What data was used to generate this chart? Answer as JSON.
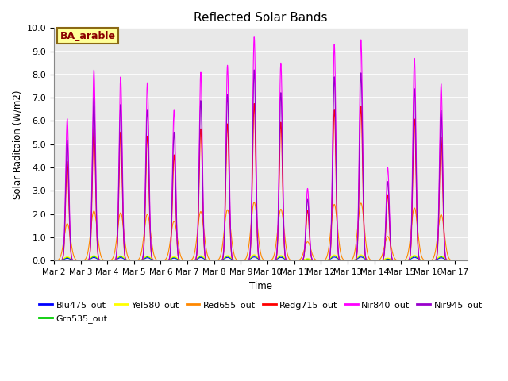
{
  "title": "Reflected Solar Bands",
  "ylabel": "Solar Raditaion (W/m2)",
  "xlabel": "Time",
  "annotation_text": "BA_arable",
  "annotation_color": "#8B0000",
  "annotation_bg": "#FFFF99",
  "annotation_border": "#8B6914",
  "ylim": [
    0,
    10.0
  ],
  "yticks": [
    0.0,
    1.0,
    2.0,
    3.0,
    4.0,
    5.0,
    6.0,
    7.0,
    8.0,
    9.0,
    10.0
  ],
  "series": [
    {
      "label": "Blu475_out",
      "color": "#0000FF",
      "scale": 0.016
    },
    {
      "label": "Grn535_out",
      "color": "#00CC00",
      "scale": 0.022
    },
    {
      "label": "Yel580_out",
      "color": "#FFFF00",
      "scale": 0.026
    },
    {
      "label": "Red655_out",
      "color": "#FF8800",
      "scale": 0.26
    },
    {
      "label": "Redg715_out",
      "color": "#FF0000",
      "scale": 0.7
    },
    {
      "label": "Nir840_out",
      "color": "#FF00FF",
      "scale": 1.0
    },
    {
      "label": "Nir945_out",
      "color": "#9900CC",
      "scale": 0.85
    }
  ],
  "day_peaks_narrow": [
    {
      "day": 0,
      "peak": 6.1
    },
    {
      "day": 1,
      "peak": 8.2
    },
    {
      "day": 2,
      "peak": 7.9
    },
    {
      "day": 3,
      "peak": 7.65
    },
    {
      "day": 4,
      "peak": 6.5
    },
    {
      "day": 5,
      "peak": 8.1
    },
    {
      "day": 6,
      "peak": 8.4
    },
    {
      "day": 7,
      "peak": 9.65
    },
    {
      "day": 8,
      "peak": 8.5
    },
    {
      "day": 9,
      "peak": 3.1
    },
    {
      "day": 10,
      "peak": 9.3
    },
    {
      "day": 11,
      "peak": 9.5
    },
    {
      "day": 12,
      "peak": 4.0
    },
    {
      "day": 13,
      "peak": 8.7
    },
    {
      "day": 14,
      "peak": 7.6
    }
  ],
  "day_peaks_broad": [
    {
      "day": 0,
      "peak": 6.1
    },
    {
      "day": 1,
      "peak": 8.2
    },
    {
      "day": 2,
      "peak": 7.9
    },
    {
      "day": 3,
      "peak": 7.65
    },
    {
      "day": 4,
      "peak": 6.5
    },
    {
      "day": 5,
      "peak": 8.1
    },
    {
      "day": 6,
      "peak": 8.4
    },
    {
      "day": 7,
      "peak": 9.65
    },
    {
      "day": 8,
      "peak": 8.5
    },
    {
      "day": 9,
      "peak": 3.1
    },
    {
      "day": 10,
      "peak": 9.3
    },
    {
      "day": 11,
      "peak": 9.5
    },
    {
      "day": 12,
      "peak": 4.0
    },
    {
      "day": 13,
      "peak": 8.7
    },
    {
      "day": 14,
      "peak": 7.6
    }
  ],
  "xtick_labels": [
    "Mar 2",
    "Mar 3",
    "Mar 4",
    "Mar 5",
    "Mar 6",
    "Mar 7",
    "Mar 8",
    "Mar 9",
    "Mar 10",
    "Mar 11",
    "Mar 12",
    "Mar 13",
    "Mar 14",
    "Mar 15",
    "Mar 16",
    "Mar 17"
  ],
  "bg_color": "#E8E8E8",
  "grid_color": "#FFFFFF",
  "figsize": [
    6.4,
    4.8
  ],
  "dpi": 100
}
